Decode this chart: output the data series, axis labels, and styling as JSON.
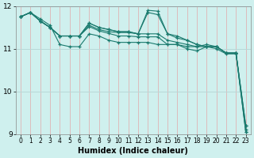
{
  "xlabel": "Humidex (Indice chaleur)",
  "bg_color": "#cff0ee",
  "vgrid_color": "#ddbcbc",
  "hgrid_color": "#b8d8d8",
  "line_color": "#1a7a6e",
  "xlim": [
    -0.5,
    23.5
  ],
  "ylim": [
    9,
    12
  ],
  "yticks": [
    9,
    10,
    11,
    12
  ],
  "xticks": [
    0,
    1,
    2,
    3,
    4,
    5,
    6,
    7,
    8,
    9,
    10,
    11,
    12,
    13,
    14,
    15,
    16,
    17,
    18,
    19,
    20,
    21,
    22,
    23
  ],
  "series": [
    [
      11.75,
      11.85,
      11.7,
      11.55,
      11.1,
      11.05,
      11.05,
      11.35,
      11.3,
      11.2,
      11.15,
      11.15,
      11.15,
      11.15,
      11.1,
      11.1,
      11.1,
      11.05,
      11.05,
      11.05,
      11.05,
      10.9,
      10.9,
      9.2
    ],
    [
      11.75,
      11.85,
      11.65,
      11.5,
      11.3,
      11.3,
      11.3,
      11.6,
      11.5,
      11.45,
      11.4,
      11.4,
      11.35,
      11.85,
      11.8,
      11.35,
      11.3,
      11.2,
      11.1,
      11.05,
      11.05,
      10.9,
      10.9,
      9.2
    ],
    [
      11.75,
      11.85,
      11.65,
      11.5,
      11.3,
      11.3,
      11.3,
      11.6,
      11.5,
      11.45,
      11.4,
      11.4,
      11.35,
      11.9,
      11.88,
      11.35,
      11.25,
      11.2,
      11.1,
      11.05,
      11.05,
      10.9,
      10.9,
      9.05
    ],
    [
      11.75,
      11.85,
      11.65,
      11.5,
      11.3,
      11.3,
      11.3,
      11.55,
      11.45,
      11.4,
      11.38,
      11.38,
      11.35,
      11.35,
      11.35,
      11.2,
      11.15,
      11.1,
      11.05,
      11.1,
      11.05,
      10.9,
      10.9,
      9.1
    ],
    [
      11.75,
      11.85,
      11.65,
      11.5,
      11.3,
      11.3,
      11.3,
      11.52,
      11.42,
      11.36,
      11.3,
      11.3,
      11.28,
      11.28,
      11.28,
      11.1,
      11.1,
      11.0,
      10.95,
      11.05,
      11.0,
      10.88,
      10.88,
      9.05
    ]
  ]
}
